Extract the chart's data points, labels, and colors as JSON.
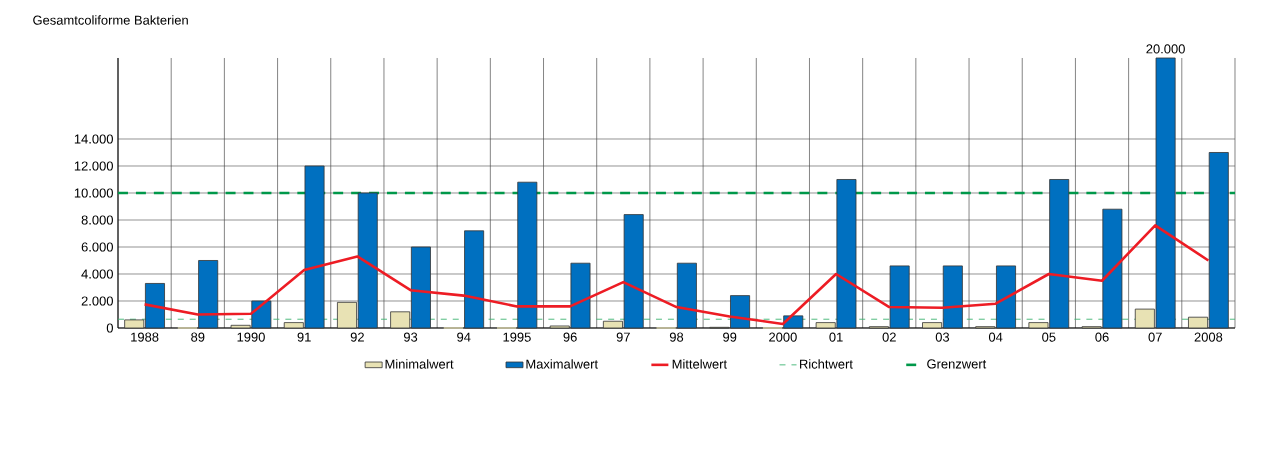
{
  "chart_data": {
    "type": "bar",
    "title": "Gesamtcoliforme Bakterien",
    "categories": [
      "1988",
      "89",
      "1990",
      "91",
      "92",
      "93",
      "94",
      "1995",
      "96",
      "97",
      "98",
      "99",
      "2000",
      "01",
      "02",
      "03",
      "04",
      "05",
      "06",
      "07",
      "2008"
    ],
    "series": [
      {
        "name": "Minimalwert",
        "color": "#e8e2b4",
        "values": [
          600,
          0,
          200,
          400,
          1900,
          1200,
          0,
          0,
          150,
          500,
          0,
          50,
          0,
          400,
          100,
          400,
          100,
          400,
          100,
          1400,
          800
        ]
      },
      {
        "name": "Maximalwert",
        "color": "#0070c0",
        "values": [
          3300,
          5000,
          2000,
          12000,
          10000,
          6000,
          7200,
          10800,
          4800,
          8400,
          4800,
          2400,
          900,
          11000,
          4600,
          4600,
          4600,
          11000,
          8800,
          20000,
          13000
        ],
        "value_labels": [
          null,
          null,
          null,
          null,
          null,
          null,
          null,
          null,
          null,
          null,
          null,
          null,
          null,
          null,
          null,
          null,
          null,
          null,
          null,
          "20.000",
          null
        ]
      },
      {
        "name": "Mittelwert",
        "type": "line",
        "color": "#ed1c24",
        "values": [
          1750,
          1000,
          1050,
          4300,
          5300,
          2800,
          2400,
          1600,
          1600,
          3400,
          1550,
          850,
          300,
          4000,
          1550,
          1500,
          1800,
          4000,
          3500,
          7600,
          5000
        ]
      }
    ],
    "ylim": [
      0,
      20000
    ],
    "yticks": [
      {
        "value": 0,
        "label": "0"
      },
      {
        "value": 2000,
        "label": "2.000"
      },
      {
        "value": 4000,
        "label": "4.000"
      },
      {
        "value": 6000,
        "label": "6.000"
      },
      {
        "value": 8000,
        "label": "8.000"
      },
      {
        "value": 10000,
        "label": "10.000"
      },
      {
        "value": 12000,
        "label": "12.000"
      },
      {
        "value": 14000,
        "label": "14.000"
      }
    ],
    "ref_lines": [
      {
        "axis": "y",
        "value": 650,
        "label": "Richtwert",
        "color": "#3cb371",
        "line_style": "dashed"
      },
      {
        "axis": "y",
        "value": 10000,
        "label": "Grenzwert",
        "color": "#00984a",
        "line_style": "dashed"
      }
    ],
    "grid": true,
    "legend": "bottom"
  }
}
